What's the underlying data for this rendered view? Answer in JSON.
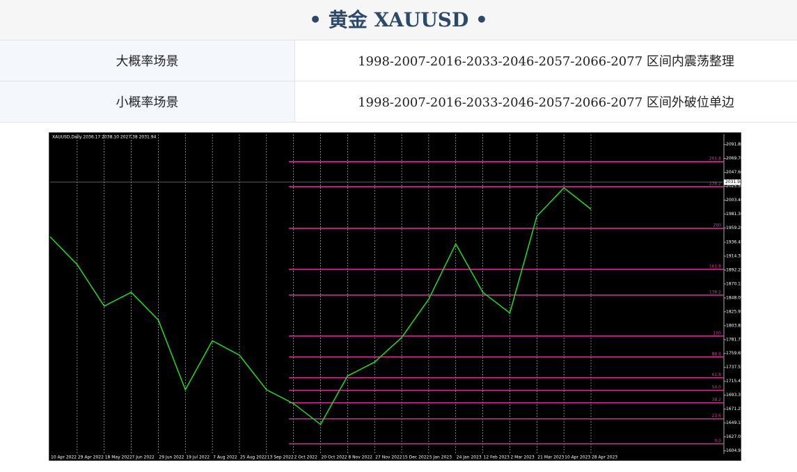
{
  "header": {
    "title": "• 黄金 XAUUSD •"
  },
  "table": {
    "rows": [
      [
        "大概率场景",
        "1998-2007-2016-2033-2046-2057-2066-2077 区间内震荡整理"
      ],
      [
        "小概率场景",
        "1998-2007-2016-2033-2046-2057-2066-2077 区间外破位单边"
      ]
    ]
  },
  "chart_data": {
    "type": "line",
    "title": "XAUUSD,Daily  2036.17 2038.10 2027.38 2031.94",
    "current_price": {
      "value": 2031.94,
      "label": "2031.94"
    },
    "categories": [
      "10 Apr 2022",
      "29 Apr 2022",
      "18 May 2022",
      "7 Jun 2022",
      "29 Jun 2022",
      "19 Jul 2022",
      "7 Aug 2022",
      "25 Aug 2022",
      "13 Sep 2022",
      "2 Oct 2022",
      "20 Oct 2022",
      "8 Nov 2022",
      "27 Nov 2022",
      "15 Dec 2022",
      "5 Jan 2023",
      "24 Jan 2023",
      "12 Feb 2023",
      "2 Mar 2023",
      "21 Mar 2023",
      "10 Apr 2023",
      "28 Apr 2023"
    ],
    "series": [
      {
        "color": "#22dd22",
        "values": [
          1945,
          1901,
          1835,
          1857,
          1813,
          1702,
          1780,
          1757,
          1702,
          1680,
          1647,
          1724,
          1746,
          1785,
          1846,
          1934,
          1857,
          1824,
          1978,
          2023,
          1989
        ]
      }
    ],
    "ylim": [
      1600,
      2108
    ],
    "yticks": [
      {
        "value": 1604.95,
        "label": "1604.95"
      },
      {
        "value": 1627.05,
        "label": "1627.05"
      },
      {
        "value": 1649.15,
        "label": "1649.15"
      },
      {
        "value": 1671.25,
        "label": "1671.25"
      },
      {
        "value": 1693.35,
        "label": "1693.35"
      },
      {
        "value": 1715.45,
        "label": "1715.45"
      },
      {
        "value": 1737.55,
        "label": "1737.55"
      },
      {
        "value": 1759.65,
        "label": "1759.65"
      },
      {
        "value": 1781.75,
        "label": "1781.75"
      },
      {
        "value": 1803.85,
        "label": "1803.85"
      },
      {
        "value": 1825.95,
        "label": "1825.95"
      },
      {
        "value": 1848.05,
        "label": "1848.05"
      },
      {
        "value": 1870.15,
        "label": "1870.15"
      },
      {
        "value": 1892.25,
        "label": "1892.25"
      },
      {
        "value": 1914.35,
        "label": "1914.35"
      },
      {
        "value": 1936.45,
        "label": "1936.45"
      },
      {
        "value": 1959.2,
        "label": "1959.20"
      },
      {
        "value": 1981.3,
        "label": "1981.30"
      },
      {
        "value": 2003.4,
        "label": "2003.40"
      },
      {
        "value": 2025.5,
        "label": "2025.50"
      },
      {
        "value": 2047.6,
        "label": "2047.60"
      },
      {
        "value": 2069.7,
        "label": "2069.70"
      },
      {
        "value": 2091.8,
        "label": "2091.80"
      }
    ],
    "fib_color": "#e0309a",
    "fib_levels": [
      {
        "value": 2064.6,
        "label": "261.8"
      },
      {
        "value": 2024.9,
        "label": "238.2"
      },
      {
        "value": 1958.6,
        "label": "200"
      },
      {
        "value": 1893.4,
        "label": "161.8"
      },
      {
        "value": 1852.5,
        "label": "138.2"
      },
      {
        "value": 1787.3,
        "label": "100"
      },
      {
        "value": 1754.1,
        "label": "88.6"
      },
      {
        "value": 1721,
        "label": "61.8"
      },
      {
        "value": 1701.1,
        "label": "50.0"
      },
      {
        "value": 1681.2,
        "label": "38.2"
      },
      {
        "value": 1655.8,
        "label": "23.6"
      },
      {
        "value": 1616,
        "label": "0.0"
      }
    ]
  }
}
